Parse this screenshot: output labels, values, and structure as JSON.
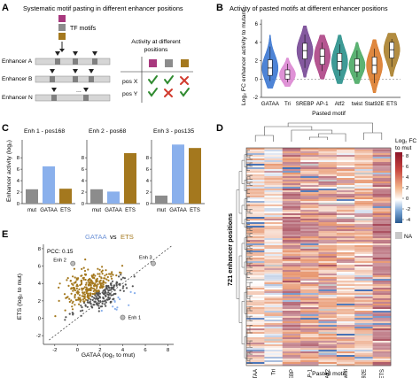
{
  "panels": {
    "A": {
      "letter": "A",
      "title": "Systematic motif pasting in different enhancer positions",
      "legend_label": "TF motifs",
      "enhancers": [
        "Enhancer A",
        "Enhancer B",
        "Enhancer N"
      ],
      "ellipsis": "...",
      "activity_title_line1": "Activity at different",
      "activity_title_line2": "positions",
      "positions": [
        "pos X",
        "pos Y"
      ],
      "motif_colors": [
        "#a8387e",
        "#8c8c8c",
        "#a4781e"
      ],
      "check_color": "#2f8a2f",
      "cross_color": "#d13b2e",
      "table": [
        [
          "check",
          "check",
          "cross"
        ],
        [
          "check",
          "cross",
          "check"
        ]
      ]
    },
    "B": {
      "letter": "B",
      "title": "Activity of pasted motifs at different enhancer positions",
      "ylabel": "Log₂ FC enhancer activity to mutant",
      "xlabel": "Pasted motif"
    },
    "C": {
      "letter": "C",
      "ylabel": "Enhancer activity (log₂)"
    },
    "D": {
      "letter": "D",
      "ylabel": "721 enhancer positions",
      "xlabel": "Pasted motif",
      "legend_title_line1": "Log₂ FC",
      "legend_title_line2": "to mut",
      "legend_ticks": [
        "8",
        "6",
        "4",
        "2",
        "0",
        "-2",
        "-4"
      ],
      "na_label": "NA"
    },
    "E": {
      "letter": "E",
      "title_gataa": "GATAA",
      "title_vs": "vs",
      "title_ets": "ETS",
      "pcc": "PCC: 0.15",
      "annotations": [
        "Enh 1",
        "Enh 2",
        "Enh 3"
      ]
    }
  },
  "chart_data": [
    {
      "panel": "B",
      "type": "violin",
      "categories": [
        "GATAA",
        "Tri",
        "SREBP",
        "AP-1",
        "Atf2",
        "twist",
        "Stat92E",
        "ETS"
      ],
      "colors": [
        "#2f6fcf",
        "#d97fcf",
        "#6e3d8e",
        "#a8387e",
        "#1c8a84",
        "#3fa55a",
        "#d9731e",
        "#a4781e"
      ],
      "medians": [
        1.2,
        0.5,
        3.1,
        2.5,
        1.9,
        1.5,
        1.5,
        3.2
      ],
      "q1": [
        0.4,
        0.0,
        2.2,
        1.6,
        1.0,
        0.8,
        0.6,
        2.3
      ],
      "q3": [
        2.1,
        1.0,
        3.9,
        3.3,
        2.8,
        2.2,
        2.4,
        4.0
      ],
      "min": [
        -1.0,
        -0.8,
        0.2,
        0.0,
        -0.5,
        -0.5,
        -1.5,
        0.3
      ],
      "max": [
        4.8,
        2.3,
        5.8,
        4.8,
        4.8,
        4.0,
        4.3,
        5.0
      ],
      "yticks": [
        -2,
        0,
        2,
        4,
        6
      ],
      "ylim": [
        -2,
        6.5
      ],
      "reference_line": 0
    },
    {
      "panel": "C",
      "type": "bar",
      "groups": [
        {
          "title": "Enh 1 - pos168",
          "categories": [
            "mut",
            "GATAA",
            "ETS"
          ],
          "values": [
            2.5,
            6.5,
            2.6
          ],
          "ymax": 10.5
        },
        {
          "title": "Enh 2 - pos68",
          "categories": [
            "mut",
            "GATAA",
            "ETS"
          ],
          "values": [
            2.5,
            2.1,
            8.8
          ],
          "ymax": 10.5
        },
        {
          "title": "Enh 3 - pos135",
          "categories": [
            "mut",
            "GATAA",
            "ETS"
          ],
          "values": [
            1.4,
            10.3,
            9.7
          ],
          "ymax": 10.5
        }
      ],
      "yticks": [
        0,
        2,
        4,
        6,
        8
      ],
      "colors": {
        "mut": "#8c8c8c",
        "GATAA": "#8ab0ec",
        "ETS": "#a4781e"
      }
    },
    {
      "panel": "D",
      "type": "heatmap",
      "columns": [
        "GATAA",
        "Tri",
        "SREBP",
        "AP-1",
        "Atf2",
        "twist",
        "Stat92E",
        "ETS"
      ],
      "row_count": 721,
      "color_range": [
        -4,
        8
      ],
      "column_means": [
        1.2,
        0.5,
        3.0,
        2.4,
        2.0,
        1.5,
        1.4,
        3.2
      ]
    },
    {
      "panel": "E",
      "type": "scatter",
      "xlabel": "GATAA (log₂ to mut)",
      "ylabel": "ETS (log₂ to mut)",
      "xlim": [
        -3,
        8.5
      ],
      "ylim": [
        -3,
        8.5
      ],
      "xticks": [
        -2,
        0,
        2,
        4,
        6,
        8
      ],
      "yticks": [
        -2,
        0,
        2,
        4,
        6,
        8
      ],
      "pcc": 0.15,
      "highlighted": [
        {
          "label": "Enh 1",
          "x": 4.0,
          "y": 0.1
        },
        {
          "label": "Enh 2",
          "x": -0.4,
          "y": 6.3
        },
        {
          "label": "Enh 3",
          "x": 6.7,
          "y": 6.3
        }
      ],
      "colors": {
        "ets_higher": "#a4781e",
        "gataa_higher": "#8ab0ec",
        "similar": "#555555"
      }
    }
  ]
}
